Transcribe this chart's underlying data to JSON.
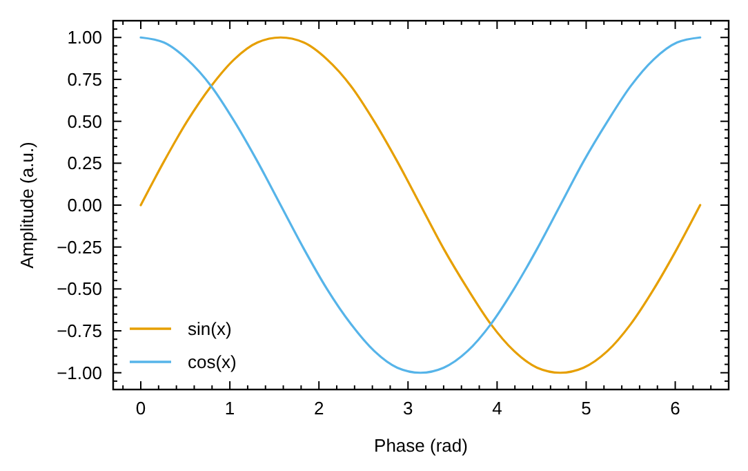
{
  "chart_data": {
    "type": "line",
    "xlabel": "Phase (rad)",
    "ylabel": "Amplitude (a.u.)",
    "x": [
      0,
      0.26,
      0.52,
      0.79,
      1.05,
      1.31,
      1.57,
      1.83,
      2.09,
      2.36,
      2.62,
      2.88,
      3.14,
      3.4,
      3.67,
      3.93,
      4.19,
      4.45,
      4.71,
      4.97,
      5.24,
      5.5,
      5.76,
      6.02,
      6.28
    ],
    "series": [
      {
        "name": "sin(x)",
        "color": "#e69f00",
        "values": [
          0,
          0.26,
          0.5,
          0.71,
          0.87,
          0.97,
          1,
          0.97,
          0.87,
          0.71,
          0.5,
          0.26,
          0,
          -0.26,
          -0.5,
          -0.71,
          -0.87,
          -0.97,
          -1,
          -0.97,
          -0.87,
          -0.71,
          -0.5,
          -0.26,
          0
        ]
      },
      {
        "name": "cos(x)",
        "color": "#56b4e9",
        "values": [
          1,
          0.97,
          0.87,
          0.71,
          0.5,
          0.26,
          0,
          -0.26,
          -0.5,
          -0.71,
          -0.87,
          -0.97,
          -1,
          -0.97,
          -0.87,
          -0.71,
          -0.5,
          -0.26,
          0,
          0.26,
          0.5,
          0.71,
          0.87,
          0.97,
          1
        ]
      }
    ],
    "xlim": [
      -0.31,
      6.6
    ],
    "ylim": [
      -1.1,
      1.1
    ],
    "xticks": [
      0,
      1,
      2,
      3,
      4,
      5,
      6,
      {
        "value": -0.2,
        "label": null
      },
      {
        "value": 0.2,
        "label": null
      },
      {
        "value": 0.4,
        "label": null
      },
      {
        "value": 0.6,
        "label": null
      },
      {
        "value": 0.8,
        "label": null
      },
      {
        "value": 1.2,
        "label": null
      },
      {
        "value": 1.4,
        "label": null
      },
      {
        "value": 1.6,
        "label": null
      },
      {
        "value": 1.8,
        "label": null
      },
      {
        "value": 2.2,
        "label": null
      },
      {
        "value": 2.4,
        "label": null
      },
      {
        "value": 2.6,
        "label": null
      },
      {
        "value": 2.8,
        "label": null
      },
      {
        "value": 3.2,
        "label": null
      },
      {
        "value": 3.4,
        "label": null
      },
      {
        "value": 3.6,
        "label": null
      },
      {
        "value": 3.8,
        "label": null
      },
      {
        "value": 4.2,
        "label": null
      },
      {
        "value": 4.4,
        "label": null
      },
      {
        "value": 4.6,
        "label": null
      },
      {
        "value": 4.8,
        "label": null
      },
      {
        "value": 5.2,
        "label": null
      },
      {
        "value": 5.4,
        "label": null
      },
      {
        "value": 5.6,
        "label": null
      },
      {
        "value": 5.8,
        "label": null
      },
      {
        "value": 6.2,
        "label": null
      },
      {
        "value": 6.4,
        "label": null
      }
    ],
    "yticks": [
      {
        "value": -1,
        "label": "−1.00"
      },
      {
        "value": -0.75,
        "label": "−0.75"
      },
      {
        "value": -0.5,
        "label": "−0.50"
      },
      {
        "value": -0.25,
        "label": "−0.25"
      },
      {
        "value": 0,
        "label": "0.00"
      },
      {
        "value": 0.25,
        "label": "0.25"
      },
      {
        "value": 0.5,
        "label": "0.50"
      },
      {
        "value": 0.75,
        "label": "0.75"
      },
      {
        "value": 1,
        "label": "1.00"
      },
      {
        "value": -1.05,
        "label": null
      },
      {
        "value": -0.95,
        "label": null
      },
      {
        "value": -0.9,
        "label": null
      },
      {
        "value": -0.85,
        "label": null
      },
      {
        "value": -0.8,
        "label": null
      },
      {
        "value": -0.7,
        "label": null
      },
      {
        "value": -0.65,
        "label": null
      },
      {
        "value": -0.6,
        "label": null
      },
      {
        "value": -0.55,
        "label": null
      },
      {
        "value": -0.45,
        "label": null
      },
      {
        "value": -0.4,
        "label": null
      },
      {
        "value": -0.35,
        "label": null
      },
      {
        "value": -0.3,
        "label": null
      },
      {
        "value": -0.2,
        "label": null
      },
      {
        "value": -0.15,
        "label": null
      },
      {
        "value": -0.1,
        "label": null
      },
      {
        "value": -0.05,
        "label": null
      },
      {
        "value": 0.05,
        "label": null
      },
      {
        "value": 0.1,
        "label": null
      },
      {
        "value": 0.15,
        "label": null
      },
      {
        "value": 0.2,
        "label": null
      },
      {
        "value": 0.3,
        "label": null
      },
      {
        "value": 0.35,
        "label": null
      },
      {
        "value": 0.4,
        "label": null
      },
      {
        "value": 0.45,
        "label": null
      },
      {
        "value": 0.55,
        "label": null
      },
      {
        "value": 0.6,
        "label": null
      },
      {
        "value": 0.65,
        "label": null
      },
      {
        "value": 0.7,
        "label": null
      },
      {
        "value": 0.8,
        "label": null
      },
      {
        "value": 0.85,
        "label": null
      },
      {
        "value": 0.9,
        "label": null
      },
      {
        "value": 0.95,
        "label": null
      },
      {
        "value": 1.05,
        "label": null
      }
    ],
    "legend": "bottom left",
    "grid": false,
    "marker": "none",
    "line_style": "solid"
  }
}
